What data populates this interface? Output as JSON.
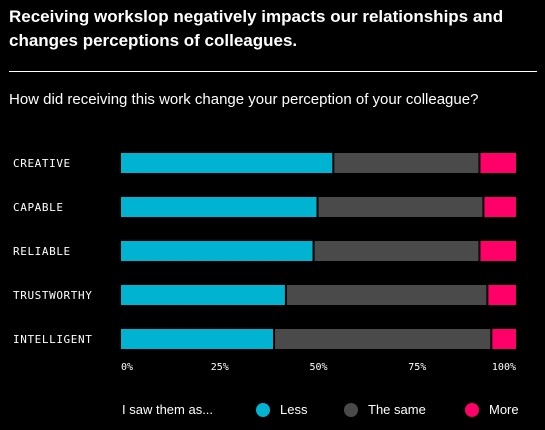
{
  "header": {
    "title": "Receiving workslop negatively impacts our relationships and changes perceptions of colleagues.",
    "subtitle": "How did receiving this work change your perception of your colleague?"
  },
  "legend": {
    "title": "I saw them as...",
    "items": [
      {
        "label": "Less",
        "color": "#00b3d1"
      },
      {
        "label": "The same",
        "color": "#4a4a4a"
      },
      {
        "label": "More",
        "color": "#ff0068"
      }
    ]
  },
  "chart_data": {
    "type": "bar",
    "orientation": "horizontal",
    "stacked": true,
    "categories": [
      "CREATIVE",
      "CAPABLE",
      "RELIABLE",
      "TRUSTWORTHY",
      "INTELLIGENT"
    ],
    "series": [
      {
        "name": "Less",
        "color": "#00b3d1",
        "values": [
          54,
          50,
          49,
          42,
          39
        ]
      },
      {
        "name": "The same",
        "color": "#4a4a4a",
        "values": [
          37,
          42,
          42,
          51,
          55
        ]
      },
      {
        "name": "More",
        "color": "#ff0068",
        "values": [
          9,
          8,
          9,
          7,
          6
        ]
      }
    ],
    "x_ticks": [
      "0%",
      "25%",
      "50%",
      "75%",
      "100%"
    ],
    "xlim": [
      0,
      100
    ],
    "grid": false,
    "legend_position": "bottom"
  }
}
